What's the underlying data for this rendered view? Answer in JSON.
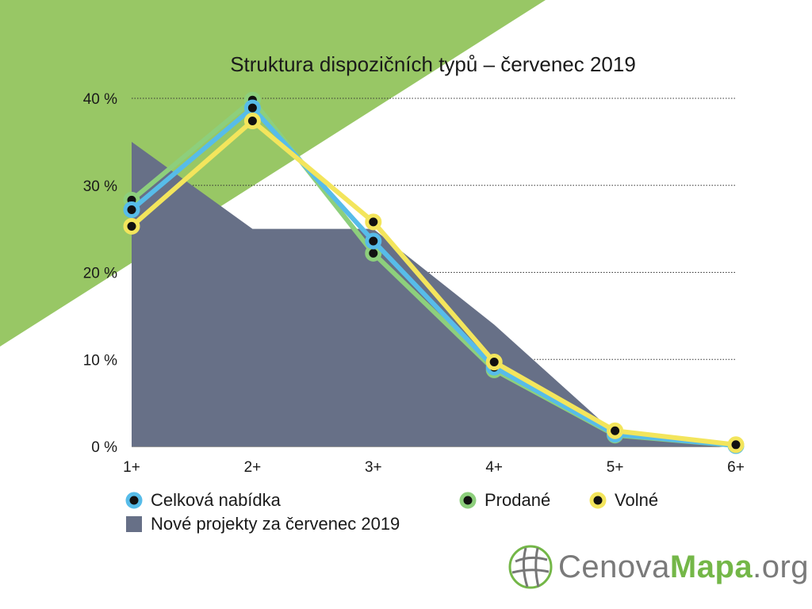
{
  "chart_data": {
    "type": "line",
    "title": "Struktura dispozičních typů – červenec 2019",
    "categories": [
      "1+",
      "2+",
      "3+",
      "4+",
      "5+",
      "6+"
    ],
    "y_ticks": [
      "0 %",
      "10 %",
      "20 %",
      "30 %",
      "40 %"
    ],
    "ylim": [
      0,
      40
    ],
    "grid": true,
    "legend_position": "bottom",
    "series": [
      {
        "name": "Nové projekty za červenec 2019",
        "type": "area",
        "color": "#677087",
        "values": [
          35,
          25,
          25,
          14,
          1.5,
          0
        ]
      },
      {
        "name": "Prodané",
        "type": "line",
        "color": "#8dcf7c",
        "values": [
          28.3,
          39.8,
          22.2,
          8.8,
          1.3,
          0.1
        ]
      },
      {
        "name": "Celková nabídka",
        "type": "line",
        "color": "#57bce9",
        "values": [
          27.2,
          38.9,
          23.6,
          9.1,
          1.4,
          0.1
        ]
      },
      {
        "name": "Volné",
        "type": "line",
        "color": "#f3e55c",
        "values": [
          25.3,
          37.4,
          25.8,
          9.7,
          1.8,
          0.2
        ]
      }
    ]
  },
  "legend": {
    "celkova": "Celková nabídka",
    "prodane": "Prodané",
    "volne": "Volné",
    "nove": "Nové projekty za červenec 2019"
  },
  "logo": {
    "part1": "Cenova",
    "part2": "Mapa",
    "part3": ".org"
  },
  "colors": {
    "background_accent": "#98c765",
    "marker_center": "#111111"
  }
}
